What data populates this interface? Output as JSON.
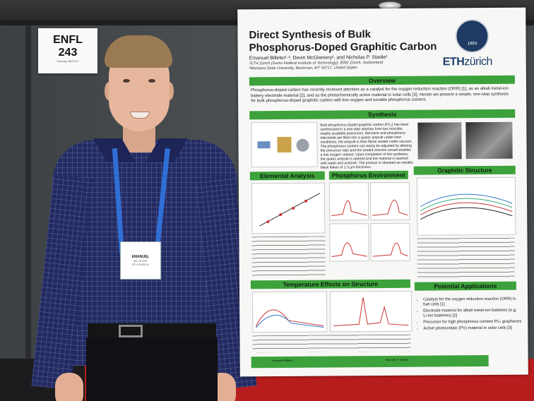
{
  "room_sign": {
    "line1": "ENFL",
    "line2": "243",
    "line3": "Monday 08/22/17"
  },
  "badge": {
    "name": "EMANUEL",
    "surname": "BILLETER",
    "org": "ETH ZURICH"
  },
  "poster": {
    "title": "Direct Synthesis of Bulk Phosphorus-Doped Graphitic Carbon",
    "authors": "Emanuel Billeter¹·², Devin McGlamery², and Nicholas P. Stadie¹",
    "affiliation1": "¹ETH Zürich (Swiss Federal Institute of Technology), 8092 Zürich, Switzerland",
    "affiliation2": "²Montana State University, Bozeman, MT 59717, United States",
    "seal_year": "1893",
    "logo_eth": "ETH",
    "logo_zurich": "zürich",
    "sections": {
      "overview": "Overview",
      "synthesis": "Synthesis",
      "elemental": "Elemental Analysis",
      "phosphorus": "Phosphorus Environment",
      "graphitic": "Graphitic Structure",
      "temperature": "Temperature Effects on Structure",
      "applications": "Potential Applications"
    },
    "overview_text": "Phosphorus-doped carbon has recently received attention as a catalyst for the oxygen reduction reaction (ORR) [1], as an alkali metal-ion battery electrode material [2], and as the photochemically active material in solar cells [3]. Herein we present a simple, one-step synthesis for bulk phosphorus-doped graphitic carbon with low oxygen and tunable phosphorus content.",
    "synthesis_text": "Bulk phosphorus-doped graphitic carbon (PCₓ) has been synthesized in a one-step reaction from two miscible, readily available precursors. Benzene and phosphorus tribromide are filled into a quartz ampule under inert conditions; the ampule is then flame sealed under vacuum. The phosphorus content can easily be adjusted by altering the precursor ratio and the sealed reaction vessel enables a low oxygen content. Upon completion of the synthesis, the quartz ampule is opened and the material is washed with water and acetone. The product is obtained as metallic black flakes of 1-3 μm thickness.",
    "applications": [
      "Catalyst for the oxygen reduction reaction (ORR) in fuel cells [1]",
      "Electrode material for alkali metal-ion batteries (e.g. Li-ion batteries) [2]",
      "Precursor for high phosphorus content PCₓ graphenes",
      "Active photovoltaic (PV) material in solar cells [3]"
    ],
    "footer_left": "Emanuel Billeter",
    "footer_right": "Nicholas P. Stadie"
  }
}
